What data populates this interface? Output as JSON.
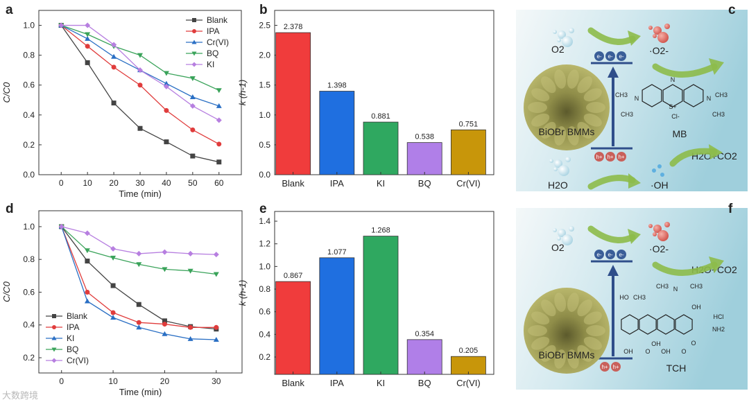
{
  "panel_labels": [
    "a",
    "b",
    "c",
    "d",
    "e",
    "f"
  ],
  "watermark": "大数跨境",
  "chart_data": [
    {
      "id": "a",
      "type": "line",
      "xlabel": "Time (min)",
      "ylabel": "C/C0",
      "x": [
        0,
        10,
        20,
        30,
        40,
        50,
        60
      ],
      "xticks": [
        0,
        10,
        20,
        30,
        40,
        50,
        60
      ],
      "yticks": [
        0.0,
        0.2,
        0.4,
        0.6,
        0.8,
        1.0
      ],
      "xlim": [
        -8.5,
        68.5
      ],
      "ylim": [
        0,
        1.1
      ],
      "legend": "top-right",
      "series": [
        {
          "name": "Blank",
          "marker": "square",
          "color": "#444444",
          "values": [
            1,
            0.75,
            0.48,
            0.31,
            0.22,
            0.125,
            0.085
          ]
        },
        {
          "name": "IPA",
          "marker": "circle",
          "color": "#e03c3c",
          "values": [
            1,
            0.86,
            0.72,
            0.6,
            0.43,
            0.3,
            0.205
          ]
        },
        {
          "name": "Cr(VI)",
          "marker": "triangle-up",
          "color": "#2a6fc4",
          "values": [
            1,
            0.91,
            0.79,
            0.7,
            0.61,
            0.52,
            0.46
          ]
        },
        {
          "name": "BQ",
          "marker": "triangle-down",
          "color": "#3aa35a",
          "values": [
            1,
            0.94,
            0.86,
            0.8,
            0.68,
            0.645,
            0.565
          ]
        },
        {
          "name": "KI",
          "marker": "diamond",
          "color": "#b77fe0",
          "values": [
            1,
            1,
            0.87,
            0.7,
            0.59,
            0.46,
            0.365
          ]
        }
      ]
    },
    {
      "id": "b",
      "type": "bar",
      "xlabel": "",
      "ylabel": "k (h-1)",
      "categories": [
        "Blank",
        "IPA",
        "KI",
        "BQ",
        "Cr(VI)"
      ],
      "values": [
        2.378,
        1.398,
        0.881,
        0.538,
        0.751
      ],
      "labels": [
        "2.378",
        "1.398",
        "0.881",
        "0.538",
        "0.751"
      ],
      "colors": [
        "#f03c3c",
        "#1f6fe0",
        "#2fa860",
        "#b07fe8",
        "#c8960a"
      ],
      "yticks": [
        "0.0",
        "0.5",
        "1.0",
        "1.5",
        "2.0",
        "2.5"
      ],
      "ytick_values": [
        0,
        0.5,
        1.0,
        1.5,
        2.0,
        2.5
      ],
      "ylim": [
        0,
        2.75
      ]
    },
    {
      "id": "d",
      "type": "line",
      "xlabel": "Time (min)",
      "ylabel": "C/C0",
      "x": [
        0,
        5,
        10,
        15,
        20,
        25,
        30
      ],
      "xticks": [
        0,
        10,
        20,
        30
      ],
      "yticks": [
        0.2,
        0.4,
        0.6,
        0.8,
        1.0
      ],
      "xlim": [
        -4.4,
        35
      ],
      "ylim": [
        0.107,
        1.097
      ],
      "legend": "bottom-left",
      "series": [
        {
          "name": "Blank",
          "marker": "square",
          "color": "#444444",
          "values": [
            1,
            0.79,
            0.64,
            0.525,
            0.425,
            0.39,
            0.375
          ]
        },
        {
          "name": "IPA",
          "marker": "circle",
          "color": "#e03c3c",
          "values": [
            1,
            0.6,
            0.475,
            0.415,
            0.405,
            0.385,
            0.385
          ]
        },
        {
          "name": "KI",
          "marker": "triangle-up",
          "color": "#2a6fc4",
          "values": [
            1,
            0.545,
            0.445,
            0.385,
            0.345,
            0.315,
            0.31
          ]
        },
        {
          "name": "BQ",
          "marker": "triangle-down",
          "color": "#3aa35a",
          "values": [
            1,
            0.855,
            0.81,
            0.77,
            0.74,
            0.73,
            0.71
          ]
        },
        {
          "name": "Cr(VI)",
          "marker": "diamond",
          "color": "#b77fe0",
          "values": [
            1,
            0.96,
            0.865,
            0.835,
            0.845,
            0.835,
            0.83
          ]
        }
      ]
    },
    {
      "id": "e",
      "type": "bar",
      "xlabel": "",
      "ylabel": "k (h-1)",
      "categories": [
        "Blank",
        "IPA",
        "KI",
        "BQ",
        "Cr(VI)"
      ],
      "values": [
        0.867,
        1.077,
        1.268,
        0.354,
        0.205
      ],
      "labels": [
        "0.867",
        "1.077",
        "1.268",
        "0.354",
        "0.205"
      ],
      "colors": [
        "#f03c3c",
        "#1f6fe0",
        "#2fa860",
        "#b07fe8",
        "#c8960a"
      ],
      "yticks": [
        "0.2",
        "0.4",
        "0.6",
        "0.8",
        "1.0",
        "1.2",
        "1.4"
      ],
      "ytick_values": [
        0.2,
        0.4,
        0.6,
        0.8,
        1.0,
        1.2,
        1.4
      ],
      "ylim": [
        0.047,
        1.486
      ]
    }
  ],
  "schematic_c": {
    "o2": "O2",
    "superoxide": "·O2-",
    "electron": "e-",
    "hole": "h+",
    "catalyst": "BiOBr BMMs",
    "water": "H2O",
    "hydroxyl": "·OH",
    "products": "H2O+CO2",
    "pollutant": "MB",
    "atoms": [
      "N",
      "S+",
      "Cl-",
      "CH3",
      "N",
      "CH3",
      "N",
      "CH3",
      "CH3"
    ]
  },
  "schematic_f": {
    "o2": "O2",
    "superoxide": "·O2-",
    "electron": "e-",
    "hole": "h+",
    "catalyst": "BiOBr BMMs",
    "products": "H2O+CO2",
    "pollutant": "TCH",
    "atoms": [
      "HO",
      "CH3",
      "CH3",
      "N",
      "CH3",
      "OH",
      "HCl",
      "NH2",
      "OH",
      "O",
      "OH",
      "OH",
      "O",
      "O"
    ]
  }
}
